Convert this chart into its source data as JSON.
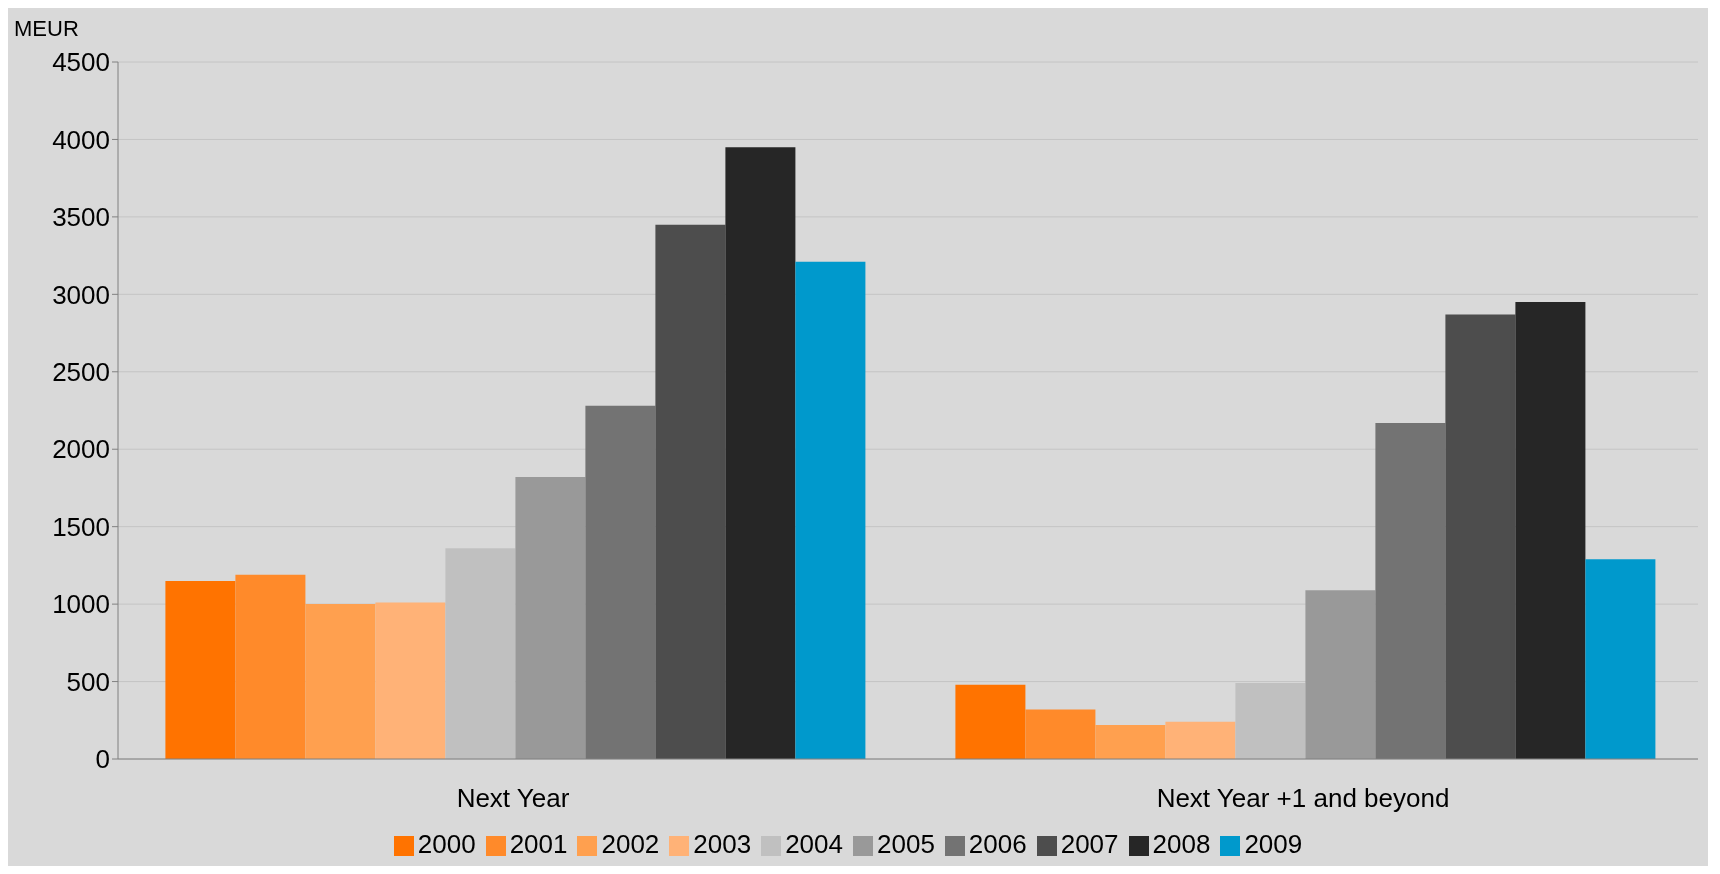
{
  "chart_data": {
    "type": "bar",
    "ylabel": "MEUR",
    "categories": [
      "Next Year",
      "Next Year +1 and beyond"
    ],
    "series": [
      {
        "name": "2000",
        "color": "#ff7300",
        "values": [
          1150,
          480
        ]
      },
      {
        "name": "2001",
        "color": "#ff8a2a",
        "values": [
          1190,
          320
        ]
      },
      {
        "name": "2002",
        "color": "#ffa04f",
        "values": [
          1000,
          220
        ]
      },
      {
        "name": "2003",
        "color": "#ffb277",
        "values": [
          1010,
          240
        ]
      },
      {
        "name": "2004",
        "color": "#c0c0c0",
        "values": [
          1360,
          490
        ]
      },
      {
        "name": "2005",
        "color": "#999999",
        "values": [
          1820,
          1090
        ]
      },
      {
        "name": "2006",
        "color": "#737373",
        "values": [
          2280,
          2170
        ]
      },
      {
        "name": "2007",
        "color": "#4d4d4d",
        "values": [
          3450,
          2870
        ]
      },
      {
        "name": "2008",
        "color": "#262626",
        "values": [
          3950,
          2950
        ]
      },
      {
        "name": "2009",
        "color": "#0099cc",
        "values": [
          3210,
          1290
        ]
      }
    ],
    "ylim": [
      0,
      4500
    ],
    "yticks": [
      0,
      500,
      1000,
      1500,
      2000,
      2500,
      3000,
      3500,
      4000,
      4500
    ],
    "grid": "y",
    "legend": "bottom"
  }
}
